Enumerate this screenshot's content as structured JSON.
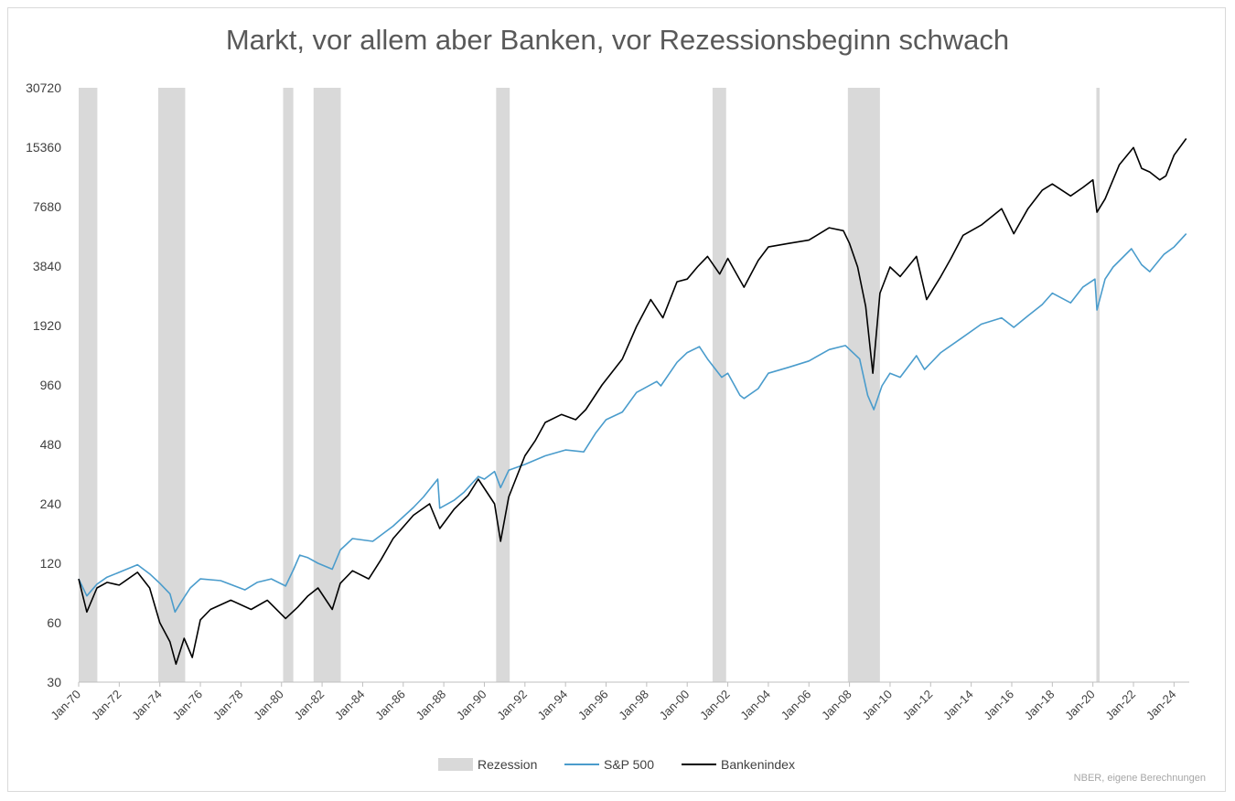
{
  "chart_data": {
    "type": "line",
    "title": "Markt, vor allem aber Banken, vor Rezessionsbeginn schwach",
    "source": "NBER, eigene Berechnungen",
    "y_scale": "log2",
    "ylim": [
      30,
      30720
    ],
    "y_ticks": [
      "30",
      "60",
      "120",
      "240",
      "480",
      "960",
      "1920",
      "3840",
      "7680",
      "15360",
      "30720"
    ],
    "xlim": [
      1970.0,
      2024.75
    ],
    "x_ticks": [
      "Jan-70",
      "Jan-72",
      "Jan-74",
      "Jan-76",
      "Jan-78",
      "Jan-80",
      "Jan-82",
      "Jan-84",
      "Jan-86",
      "Jan-88",
      "Jan-90",
      "Jan-92",
      "Jan-94",
      "Jan-96",
      "Jan-98",
      "Jan-00",
      "Jan-02",
      "Jan-04",
      "Jan-06",
      "Jan-08",
      "Jan-10",
      "Jan-12",
      "Jan-14",
      "Jan-16",
      "Jan-18",
      "Jan-20",
      "Jan-22",
      "Jan-24"
    ],
    "legend_position": "bottom",
    "recessions": [
      [
        1970.0,
        1970.92
      ],
      [
        1973.92,
        1975.25
      ],
      [
        1980.08,
        1980.58
      ],
      [
        1981.58,
        1982.92
      ],
      [
        1990.58,
        1991.25
      ],
      [
        2001.25,
        2001.92
      ],
      [
        2007.92,
        2009.5
      ],
      [
        2020.17,
        2020.33
      ]
    ],
    "series": [
      {
        "name": "S&P 500",
        "color": "#4a9ccc",
        "points": [
          [
            1970.0,
            100
          ],
          [
            1970.4,
            82
          ],
          [
            1970.9,
            94
          ],
          [
            1971.4,
            102
          ],
          [
            1972.0,
            108
          ],
          [
            1972.9,
            118
          ],
          [
            1973.5,
            106
          ],
          [
            1974.0,
            95
          ],
          [
            1974.5,
            84
          ],
          [
            1974.75,
            68
          ],
          [
            1975.0,
            75
          ],
          [
            1975.5,
            90
          ],
          [
            1976.0,
            100
          ],
          [
            1977.0,
            98
          ],
          [
            1978.2,
            88
          ],
          [
            1978.8,
            96
          ],
          [
            1979.5,
            100
          ],
          [
            1980.2,
            92
          ],
          [
            1980.6,
            112
          ],
          [
            1980.9,
            132
          ],
          [
            1981.3,
            128
          ],
          [
            1981.8,
            120
          ],
          [
            1982.5,
            112
          ],
          [
            1982.9,
            140
          ],
          [
            1983.5,
            160
          ],
          [
            1984.5,
            155
          ],
          [
            1985.5,
            185
          ],
          [
            1986.5,
            230
          ],
          [
            1987.0,
            260
          ],
          [
            1987.7,
            320
          ],
          [
            1987.8,
            228
          ],
          [
            1988.5,
            250
          ],
          [
            1989.0,
            275
          ],
          [
            1989.7,
            330
          ],
          [
            1990.0,
            320
          ],
          [
            1990.5,
            350
          ],
          [
            1990.8,
            290
          ],
          [
            1991.2,
            355
          ],
          [
            1992.0,
            380
          ],
          [
            1993.0,
            420
          ],
          [
            1994.0,
            450
          ],
          [
            1994.9,
            440
          ],
          [
            1995.5,
            550
          ],
          [
            1996.0,
            640
          ],
          [
            1996.8,
            700
          ],
          [
            1997.5,
            880
          ],
          [
            1998.5,
            1000
          ],
          [
            1998.7,
            950
          ],
          [
            1999.5,
            1250
          ],
          [
            2000.0,
            1400
          ],
          [
            2000.6,
            1500
          ],
          [
            2001.0,
            1300
          ],
          [
            2001.7,
            1050
          ],
          [
            2002.0,
            1100
          ],
          [
            2002.6,
            850
          ],
          [
            2002.8,
            820
          ],
          [
            2003.5,
            920
          ],
          [
            2004.0,
            1100
          ],
          [
            2005.0,
            1180
          ],
          [
            2006.0,
            1270
          ],
          [
            2007.0,
            1450
          ],
          [
            2007.8,
            1520
          ],
          [
            2008.5,
            1300
          ],
          [
            2008.9,
            850
          ],
          [
            2009.2,
            720
          ],
          [
            2009.6,
            950
          ],
          [
            2010.0,
            1100
          ],
          [
            2010.5,
            1050
          ],
          [
            2011.3,
            1350
          ],
          [
            2011.7,
            1150
          ],
          [
            2012.5,
            1400
          ],
          [
            2013.5,
            1650
          ],
          [
            2014.5,
            1950
          ],
          [
            2015.5,
            2100
          ],
          [
            2016.1,
            1880
          ],
          [
            2016.8,
            2150
          ],
          [
            2017.5,
            2450
          ],
          [
            2018.0,
            2800
          ],
          [
            2018.9,
            2500
          ],
          [
            2019.5,
            3000
          ],
          [
            2020.1,
            3300
          ],
          [
            2020.2,
            2300
          ],
          [
            2020.6,
            3300
          ],
          [
            2021.0,
            3800
          ],
          [
            2021.9,
            4700
          ],
          [
            2022.4,
            3900
          ],
          [
            2022.8,
            3600
          ],
          [
            2023.5,
            4400
          ],
          [
            2024.0,
            4800
          ],
          [
            2024.6,
            5600
          ]
        ]
      },
      {
        "name": "Bankenindex",
        "color": "#000000",
        "points": [
          [
            1970.0,
            100
          ],
          [
            1970.4,
            68
          ],
          [
            1970.9,
            90
          ],
          [
            1971.4,
            96
          ],
          [
            1972.0,
            93
          ],
          [
            1972.9,
            108
          ],
          [
            1973.5,
            90
          ],
          [
            1974.0,
            60
          ],
          [
            1974.5,
            48
          ],
          [
            1974.8,
            37
          ],
          [
            1975.2,
            50
          ],
          [
            1975.6,
            40
          ],
          [
            1976.0,
            62
          ],
          [
            1976.5,
            70
          ],
          [
            1977.5,
            78
          ],
          [
            1978.5,
            70
          ],
          [
            1979.3,
            78
          ],
          [
            1980.2,
            63
          ],
          [
            1980.8,
            72
          ],
          [
            1981.3,
            82
          ],
          [
            1981.8,
            90
          ],
          [
            1982.5,
            70
          ],
          [
            1982.9,
            95
          ],
          [
            1983.5,
            110
          ],
          [
            1984.3,
            100
          ],
          [
            1984.9,
            125
          ],
          [
            1985.5,
            160
          ],
          [
            1986.5,
            210
          ],
          [
            1987.3,
            240
          ],
          [
            1987.8,
            180
          ],
          [
            1988.5,
            225
          ],
          [
            1989.2,
            265
          ],
          [
            1989.7,
            320
          ],
          [
            1990.5,
            240
          ],
          [
            1990.8,
            155
          ],
          [
            1991.2,
            260
          ],
          [
            1992.0,
            420
          ],
          [
            1992.5,
            500
          ],
          [
            1993.0,
            620
          ],
          [
            1993.8,
            680
          ],
          [
            1994.5,
            640
          ],
          [
            1995.0,
            720
          ],
          [
            1995.8,
            960
          ],
          [
            1996.8,
            1300
          ],
          [
            1997.5,
            1900
          ],
          [
            1998.2,
            2600
          ],
          [
            1998.8,
            2100
          ],
          [
            1999.5,
            3200
          ],
          [
            2000.0,
            3300
          ],
          [
            2000.5,
            3800
          ],
          [
            2001.0,
            4300
          ],
          [
            2001.6,
            3500
          ],
          [
            2002.0,
            4200
          ],
          [
            2002.8,
            3000
          ],
          [
            2003.5,
            4100
          ],
          [
            2004.0,
            4800
          ],
          [
            2005.0,
            5000
          ],
          [
            2006.0,
            5200
          ],
          [
            2007.0,
            6000
          ],
          [
            2007.7,
            5800
          ],
          [
            2008.0,
            5000
          ],
          [
            2008.4,
            3800
          ],
          [
            2008.8,
            2400
          ],
          [
            2009.15,
            1100
          ],
          [
            2009.5,
            2800
          ],
          [
            2010.0,
            3800
          ],
          [
            2010.5,
            3400
          ],
          [
            2011.3,
            4300
          ],
          [
            2011.8,
            2600
          ],
          [
            2012.5,
            3400
          ],
          [
            2013.0,
            4200
          ],
          [
            2013.6,
            5500
          ],
          [
            2014.5,
            6200
          ],
          [
            2015.5,
            7500
          ],
          [
            2016.1,
            5600
          ],
          [
            2016.8,
            7500
          ],
          [
            2017.5,
            9300
          ],
          [
            2018.0,
            10000
          ],
          [
            2018.9,
            8700
          ],
          [
            2019.5,
            9600
          ],
          [
            2020.0,
            10500
          ],
          [
            2020.2,
            7200
          ],
          [
            2020.6,
            8400
          ],
          [
            2021.3,
            12500
          ],
          [
            2022.0,
            15300
          ],
          [
            2022.4,
            12000
          ],
          [
            2022.8,
            11500
          ],
          [
            2023.3,
            10500
          ],
          [
            2023.6,
            11000
          ],
          [
            2024.0,
            14000
          ],
          [
            2024.6,
            17000
          ]
        ]
      }
    ],
    "legend": [
      {
        "label": "Rezession",
        "color": "#d9d9d9",
        "kind": "box"
      },
      {
        "label": "S&P 500",
        "color": "#4a9ccc",
        "kind": "line"
      },
      {
        "label": "Bankenindex",
        "color": "#000000",
        "kind": "line"
      }
    ]
  }
}
